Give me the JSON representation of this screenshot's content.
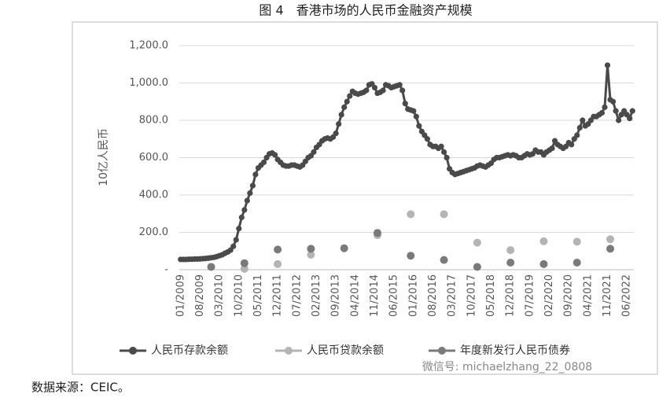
{
  "chart_data": {
    "type": "line",
    "title": "图 4　香港市场的人民币金融资产规模",
    "y_label": "10亿人民币",
    "source": "数据来源：CEIC。",
    "watermark": "微信号: michaelzhang_22_0808",
    "grid": true,
    "legend": "bottom",
    "ylim": [
      0,
      1200
    ],
    "yticks": [
      {
        "value": 0,
        "label": "-"
      },
      {
        "value": 200,
        "label": "200.0"
      },
      {
        "value": 400,
        "label": "400.0"
      },
      {
        "value": 600,
        "label": "600.0"
      },
      {
        "value": 800,
        "label": "800.0"
      },
      {
        "value": 1000,
        "label": "1,000.0"
      },
      {
        "value": 1200,
        "label": "1,200.0"
      }
    ],
    "categories": [
      "01/2009",
      null,
      null,
      null,
      null,
      null,
      null,
      "08/2009",
      null,
      null,
      null,
      null,
      null,
      null,
      "03/2010",
      null,
      null,
      null,
      null,
      null,
      null,
      "10/2010",
      null,
      null,
      null,
      null,
      null,
      null,
      "05/2011",
      null,
      null,
      null,
      null,
      null,
      null,
      "12/2011",
      null,
      null,
      null,
      null,
      null,
      null,
      "07/2012",
      null,
      null,
      null,
      null,
      null,
      null,
      "02/2013",
      null,
      null,
      null,
      null,
      null,
      null,
      "09/2013",
      null,
      null,
      null,
      null,
      null,
      null,
      "04/2014",
      null,
      null,
      null,
      null,
      null,
      null,
      "11/2014",
      null,
      null,
      null,
      null,
      null,
      null,
      "06/2015",
      null,
      null,
      null,
      null,
      null,
      null,
      "01/2016",
      null,
      null,
      null,
      null,
      null,
      null,
      "08/2016",
      null,
      null,
      null,
      null,
      null,
      null,
      "03/2017",
      null,
      null,
      null,
      null,
      null,
      null,
      "10/2017",
      null,
      null,
      null,
      null,
      null,
      null,
      "05/2018",
      null,
      null,
      null,
      null,
      null,
      null,
      "12/2018",
      null,
      null,
      null,
      null,
      null,
      null,
      "07/2019",
      null,
      null,
      null,
      null,
      null,
      null,
      "02/2020",
      null,
      null,
      null,
      null,
      null,
      null,
      "09/2020",
      null,
      null,
      null,
      null,
      null,
      null,
      "04/2021",
      null,
      null,
      null,
      null,
      null,
      null,
      "11/2021",
      null,
      null,
      null,
      null,
      null,
      null,
      "06/2022",
      null,
      null
    ],
    "series": [
      {
        "name": "人民币存款余额",
        "color": "#4a4a4a",
        "line": true,
        "values": [
          55,
          55,
          55,
          56,
          56,
          57,
          57,
          58,
          59,
          60,
          62,
          64,
          66,
          70,
          75,
          80,
          88,
          95,
          105,
          125,
          160,
          220,
          280,
          320,
          370,
          410,
          450,
          510,
          545,
          560,
          575,
          600,
          620,
          625,
          615,
          590,
          575,
          560,
          555,
          555,
          560,
          560,
          555,
          550,
          560,
          580,
          600,
          610,
          630,
          655,
          670,
          690,
          700,
          705,
          700,
          710,
          730,
          780,
          830,
          870,
          900,
          930,
          955,
          945,
          940,
          945,
          950,
          960,
          990,
          995,
          975,
          945,
          950,
          960,
          990,
          985,
          975,
          980,
          985,
          990,
          960,
          890,
          860,
          855,
          850,
          820,
          770,
          740,
          720,
          700,
          670,
          660,
          660,
          650,
          660,
          630,
          600,
          540,
          520,
          510,
          515,
          520,
          525,
          530,
          535,
          540,
          545,
          555,
          560,
          555,
          550,
          560,
          570,
          590,
          600,
          600,
          605,
          610,
          615,
          610,
          615,
          610,
          600,
          600,
          610,
          620,
          615,
          620,
          640,
          630,
          630,
          615,
          630,
          640,
          650,
          690,
          670,
          660,
          650,
          660,
          680,
          670,
          700,
          720,
          760,
          800,
          770,
          780,
          800,
          820,
          820,
          830,
          840,
          870,
          1095,
          910,
          900,
          850,
          800,
          830,
          850,
          830,
          810,
          850
        ]
      },
      {
        "name": "人民币贷款余额",
        "color": "#b4b4b4",
        "line": false,
        "values": [
          null,
          null,
          null,
          null,
          null,
          null,
          null,
          null,
          null,
          null,
          null,
          null,
          null,
          null,
          null,
          null,
          null,
          null,
          null,
          null,
          null,
          null,
          null,
          5,
          null,
          null,
          null,
          null,
          null,
          null,
          null,
          null,
          null,
          null,
          null,
          30,
          null,
          null,
          null,
          null,
          null,
          null,
          null,
          null,
          null,
          null,
          null,
          80,
          null,
          null,
          null,
          null,
          null,
          null,
          null,
          null,
          null,
          null,
          null,
          null,
          null,
          null,
          null,
          null,
          null,
          null,
          null,
          null,
          null,
          null,
          null,
          185,
          null,
          null,
          null,
          null,
          null,
          null,
          null,
          null,
          null,
          null,
          null,
          297,
          null,
          null,
          null,
          null,
          null,
          null,
          null,
          null,
          null,
          null,
          null,
          297,
          null,
          null,
          null,
          null,
          null,
          null,
          null,
          null,
          null,
          null,
          null,
          145,
          null,
          null,
          null,
          null,
          null,
          null,
          null,
          null,
          null,
          null,
          null,
          105,
          null,
          null,
          null,
          null,
          null,
          null,
          null,
          null,
          null,
          null,
          null,
          152,
          null,
          null,
          null,
          null,
          null,
          null,
          null,
          null,
          null,
          null,
          null,
          150,
          null,
          null,
          null,
          null,
          null,
          null,
          null,
          null,
          null,
          null,
          null,
          163,
          null,
          null,
          null,
          null,
          null,
          null,
          null,
          null
        ]
      },
      {
        "name": "年度新发行人民币债券",
        "color": "#7a7a7a",
        "line": false,
        "values": [
          null,
          null,
          null,
          null,
          null,
          null,
          null,
          null,
          null,
          null,
          null,
          15,
          null,
          null,
          null,
          null,
          null,
          null,
          null,
          null,
          null,
          null,
          null,
          35,
          null,
          null,
          null,
          null,
          null,
          null,
          null,
          null,
          null,
          null,
          null,
          108,
          null,
          null,
          null,
          null,
          null,
          null,
          null,
          null,
          null,
          null,
          null,
          112,
          null,
          null,
          null,
          null,
          null,
          null,
          null,
          null,
          null,
          null,
          null,
          115,
          null,
          null,
          null,
          null,
          null,
          null,
          null,
          null,
          null,
          null,
          null,
          197,
          null,
          null,
          null,
          null,
          null,
          null,
          null,
          null,
          null,
          null,
          null,
          75,
          null,
          null,
          null,
          null,
          null,
          null,
          null,
          null,
          null,
          null,
          null,
          52,
          null,
          null,
          null,
          null,
          null,
          null,
          null,
          null,
          null,
          null,
          null,
          15,
          null,
          null,
          null,
          null,
          null,
          null,
          null,
          null,
          null,
          null,
          null,
          38,
          null,
          null,
          null,
          null,
          null,
          null,
          null,
          null,
          null,
          null,
          null,
          30,
          null,
          null,
          null,
          null,
          null,
          null,
          null,
          null,
          null,
          null,
          null,
          38,
          null,
          null,
          null,
          null,
          null,
          null,
          null,
          null,
          null,
          null,
          null,
          112,
          null,
          null,
          null,
          null,
          null,
          null,
          null,
          null
        ]
      }
    ]
  }
}
